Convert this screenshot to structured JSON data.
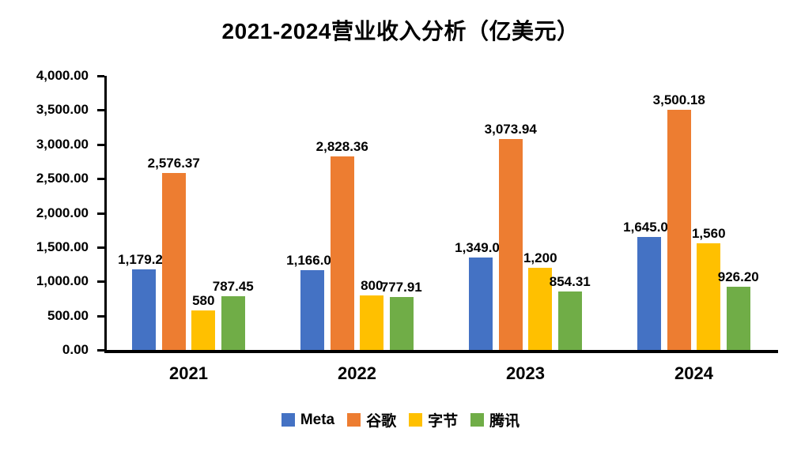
{
  "chart_data": {
    "type": "bar",
    "title": "2021-2024营业收入分析（亿美元）",
    "categories": [
      "2021",
      "2022",
      "2023",
      "2024"
    ],
    "series": [
      {
        "name": "Meta",
        "color": "#4472C4",
        "values": [
          1179.29,
          1166.09,
          1349.02,
          1645.01
        ],
        "labels": [
          "1,179.29",
          "1,166.09",
          "1,349.02",
          "1,645.01"
        ]
      },
      {
        "name": "谷歌",
        "color": "#ED7D31",
        "values": [
          2576.37,
          2828.36,
          3073.94,
          3500.18
        ],
        "labels": [
          "2,576.37",
          "2,828.36",
          "3,073.94",
          "3,500.18"
        ]
      },
      {
        "name": "字节",
        "color": "#FFC000",
        "values": [
          580,
          800,
          1200,
          1560
        ],
        "labels": [
          "580",
          "800",
          "1,200",
          "1,560"
        ]
      },
      {
        "name": "腾讯",
        "color": "#70AD47",
        "values": [
          787.45,
          777.91,
          854.31,
          926.2
        ],
        "labels": [
          "787.45",
          "777.91",
          "854.31",
          "926.20"
        ]
      }
    ],
    "ylim": [
      0,
      4000
    ],
    "yticks": {
      "values": [
        0,
        500,
        1000,
        1500,
        2000,
        2500,
        3000,
        3500,
        4000
      ],
      "labels": [
        "0.00",
        "500.00",
        "1,000.00",
        "1,500.00",
        "2,000.00",
        "2,500.00",
        "3,000.00",
        "3,500.00",
        "4,000.00"
      ]
    },
    "grid": false,
    "axis_color": "#000000",
    "text_color": "#000000",
    "legend_position": "bottom"
  }
}
